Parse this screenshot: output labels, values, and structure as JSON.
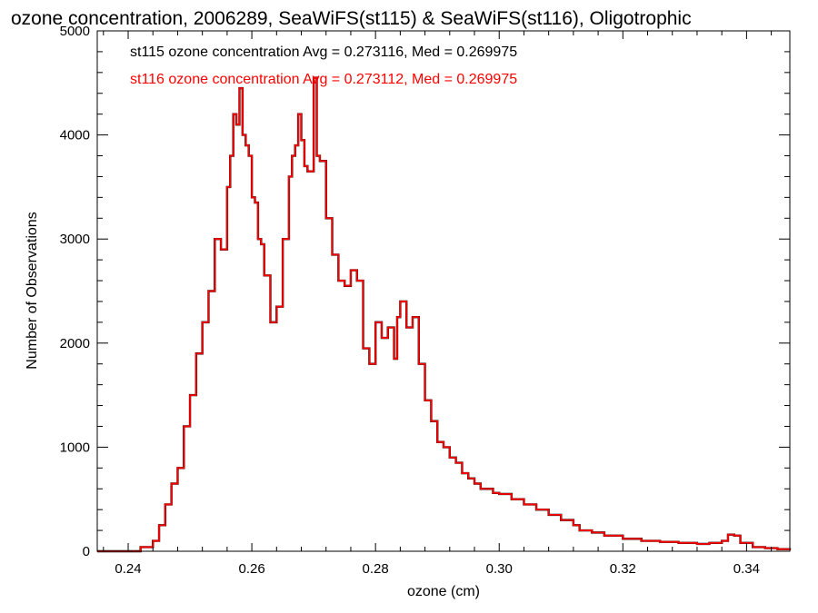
{
  "chart_data": {
    "type": "line",
    "title": "ozone concentration, 2006289, SeaWiFS(st115) & SeaWiFS(st116), Oligotrophic",
    "xlabel": "ozone (cm)",
    "ylabel": "Number of Observations",
    "xlim": [
      0.235,
      0.347
    ],
    "ylim": [
      0,
      5000
    ],
    "x_ticks": [
      0.24,
      0.26,
      0.28,
      0.3,
      0.32,
      0.34
    ],
    "x_tick_labels": [
      "0.24",
      "0.26",
      "0.28",
      "0.30",
      "0.32",
      "0.34"
    ],
    "y_ticks": [
      0,
      1000,
      2000,
      3000,
      4000,
      5000
    ],
    "y_tick_labels": [
      "0",
      "1000",
      "2000",
      "3000",
      "4000",
      "5000"
    ],
    "grid": false,
    "legend_placement": "top-left",
    "step": "histogram",
    "x": [
      0.235,
      0.24,
      0.242,
      0.244,
      0.245,
      0.246,
      0.247,
      0.248,
      0.249,
      0.25,
      0.251,
      0.252,
      0.253,
      0.254,
      0.255,
      0.256,
      0.2565,
      0.257,
      0.2575,
      0.258,
      0.2585,
      0.259,
      0.2595,
      0.26,
      0.2605,
      0.261,
      0.2615,
      0.262,
      0.263,
      0.264,
      0.265,
      0.266,
      0.2665,
      0.267,
      0.2675,
      0.268,
      0.2685,
      0.269,
      0.2695,
      0.27,
      0.2705,
      0.271,
      0.272,
      0.273,
      0.274,
      0.275,
      0.276,
      0.277,
      0.278,
      0.279,
      0.28,
      0.281,
      0.282,
      0.283,
      0.2835,
      0.284,
      0.285,
      0.286,
      0.287,
      0.288,
      0.289,
      0.29,
      0.291,
      0.292,
      0.293,
      0.294,
      0.295,
      0.296,
      0.297,
      0.298,
      0.299,
      0.3,
      0.302,
      0.304,
      0.306,
      0.308,
      0.31,
      0.312,
      0.313,
      0.315,
      0.317,
      0.32,
      0.323,
      0.326,
      0.329,
      0.332,
      0.334,
      0.336,
      0.337,
      0.338,
      0.339,
      0.341,
      0.343,
      0.345,
      0.347
    ],
    "series": [
      {
        "name": "st115",
        "color": "#000000",
        "values": [
          0,
          0,
          40,
          100,
          250,
          450,
          650,
          800,
          1200,
          1500,
          1900,
          2200,
          2500,
          3000,
          2900,
          3500,
          3800,
          4200,
          4100,
          4450,
          4000,
          3900,
          3800,
          3400,
          3350,
          3000,
          2950,
          2650,
          2200,
          2350,
          3000,
          3600,
          3800,
          3900,
          4200,
          3950,
          3700,
          3650,
          3650,
          4550,
          3800,
          3750,
          3200,
          2850,
          2600,
          2550,
          2700,
          2600,
          1950,
          1800,
          2200,
          2050,
          2150,
          1850,
          2250,
          2400,
          2150,
          2250,
          1800,
          1450,
          1250,
          1050,
          1000,
          900,
          850,
          750,
          700,
          650,
          600,
          600,
          560,
          550,
          500,
          450,
          400,
          350,
          300,
          250,
          200,
          180,
          150,
          120,
          100,
          90,
          80,
          70,
          80,
          100,
          160,
          150,
          80,
          40,
          30,
          20,
          10
        ]
      },
      {
        "name": "st116",
        "color": "#ff0000",
        "values": [
          0,
          0,
          40,
          100,
          250,
          450,
          650,
          800,
          1200,
          1500,
          1900,
          2200,
          2500,
          3000,
          2900,
          3500,
          3800,
          4200,
          4100,
          4450,
          4000,
          3900,
          3800,
          3400,
          3350,
          3000,
          2950,
          2650,
          2200,
          2350,
          3000,
          3600,
          3800,
          3900,
          4200,
          3950,
          3700,
          3650,
          3650,
          4550,
          3800,
          3750,
          3200,
          2850,
          2600,
          2550,
          2700,
          2600,
          1950,
          1800,
          2200,
          2050,
          2150,
          1850,
          2250,
          2400,
          2150,
          2250,
          1800,
          1450,
          1250,
          1050,
          1000,
          900,
          850,
          750,
          700,
          650,
          600,
          600,
          560,
          550,
          500,
          450,
          400,
          350,
          300,
          250,
          200,
          180,
          150,
          120,
          100,
          90,
          80,
          70,
          80,
          100,
          160,
          150,
          80,
          40,
          30,
          20,
          10
        ]
      }
    ],
    "annotations": [
      {
        "text": "st115 ozone concentration Avg = 0.273116, Med = 0.269975",
        "color": "#000000"
      },
      {
        "text": "st116 ozone concentration Avg = 0.273112, Med = 0.269975",
        "color": "#ff0000"
      }
    ]
  }
}
